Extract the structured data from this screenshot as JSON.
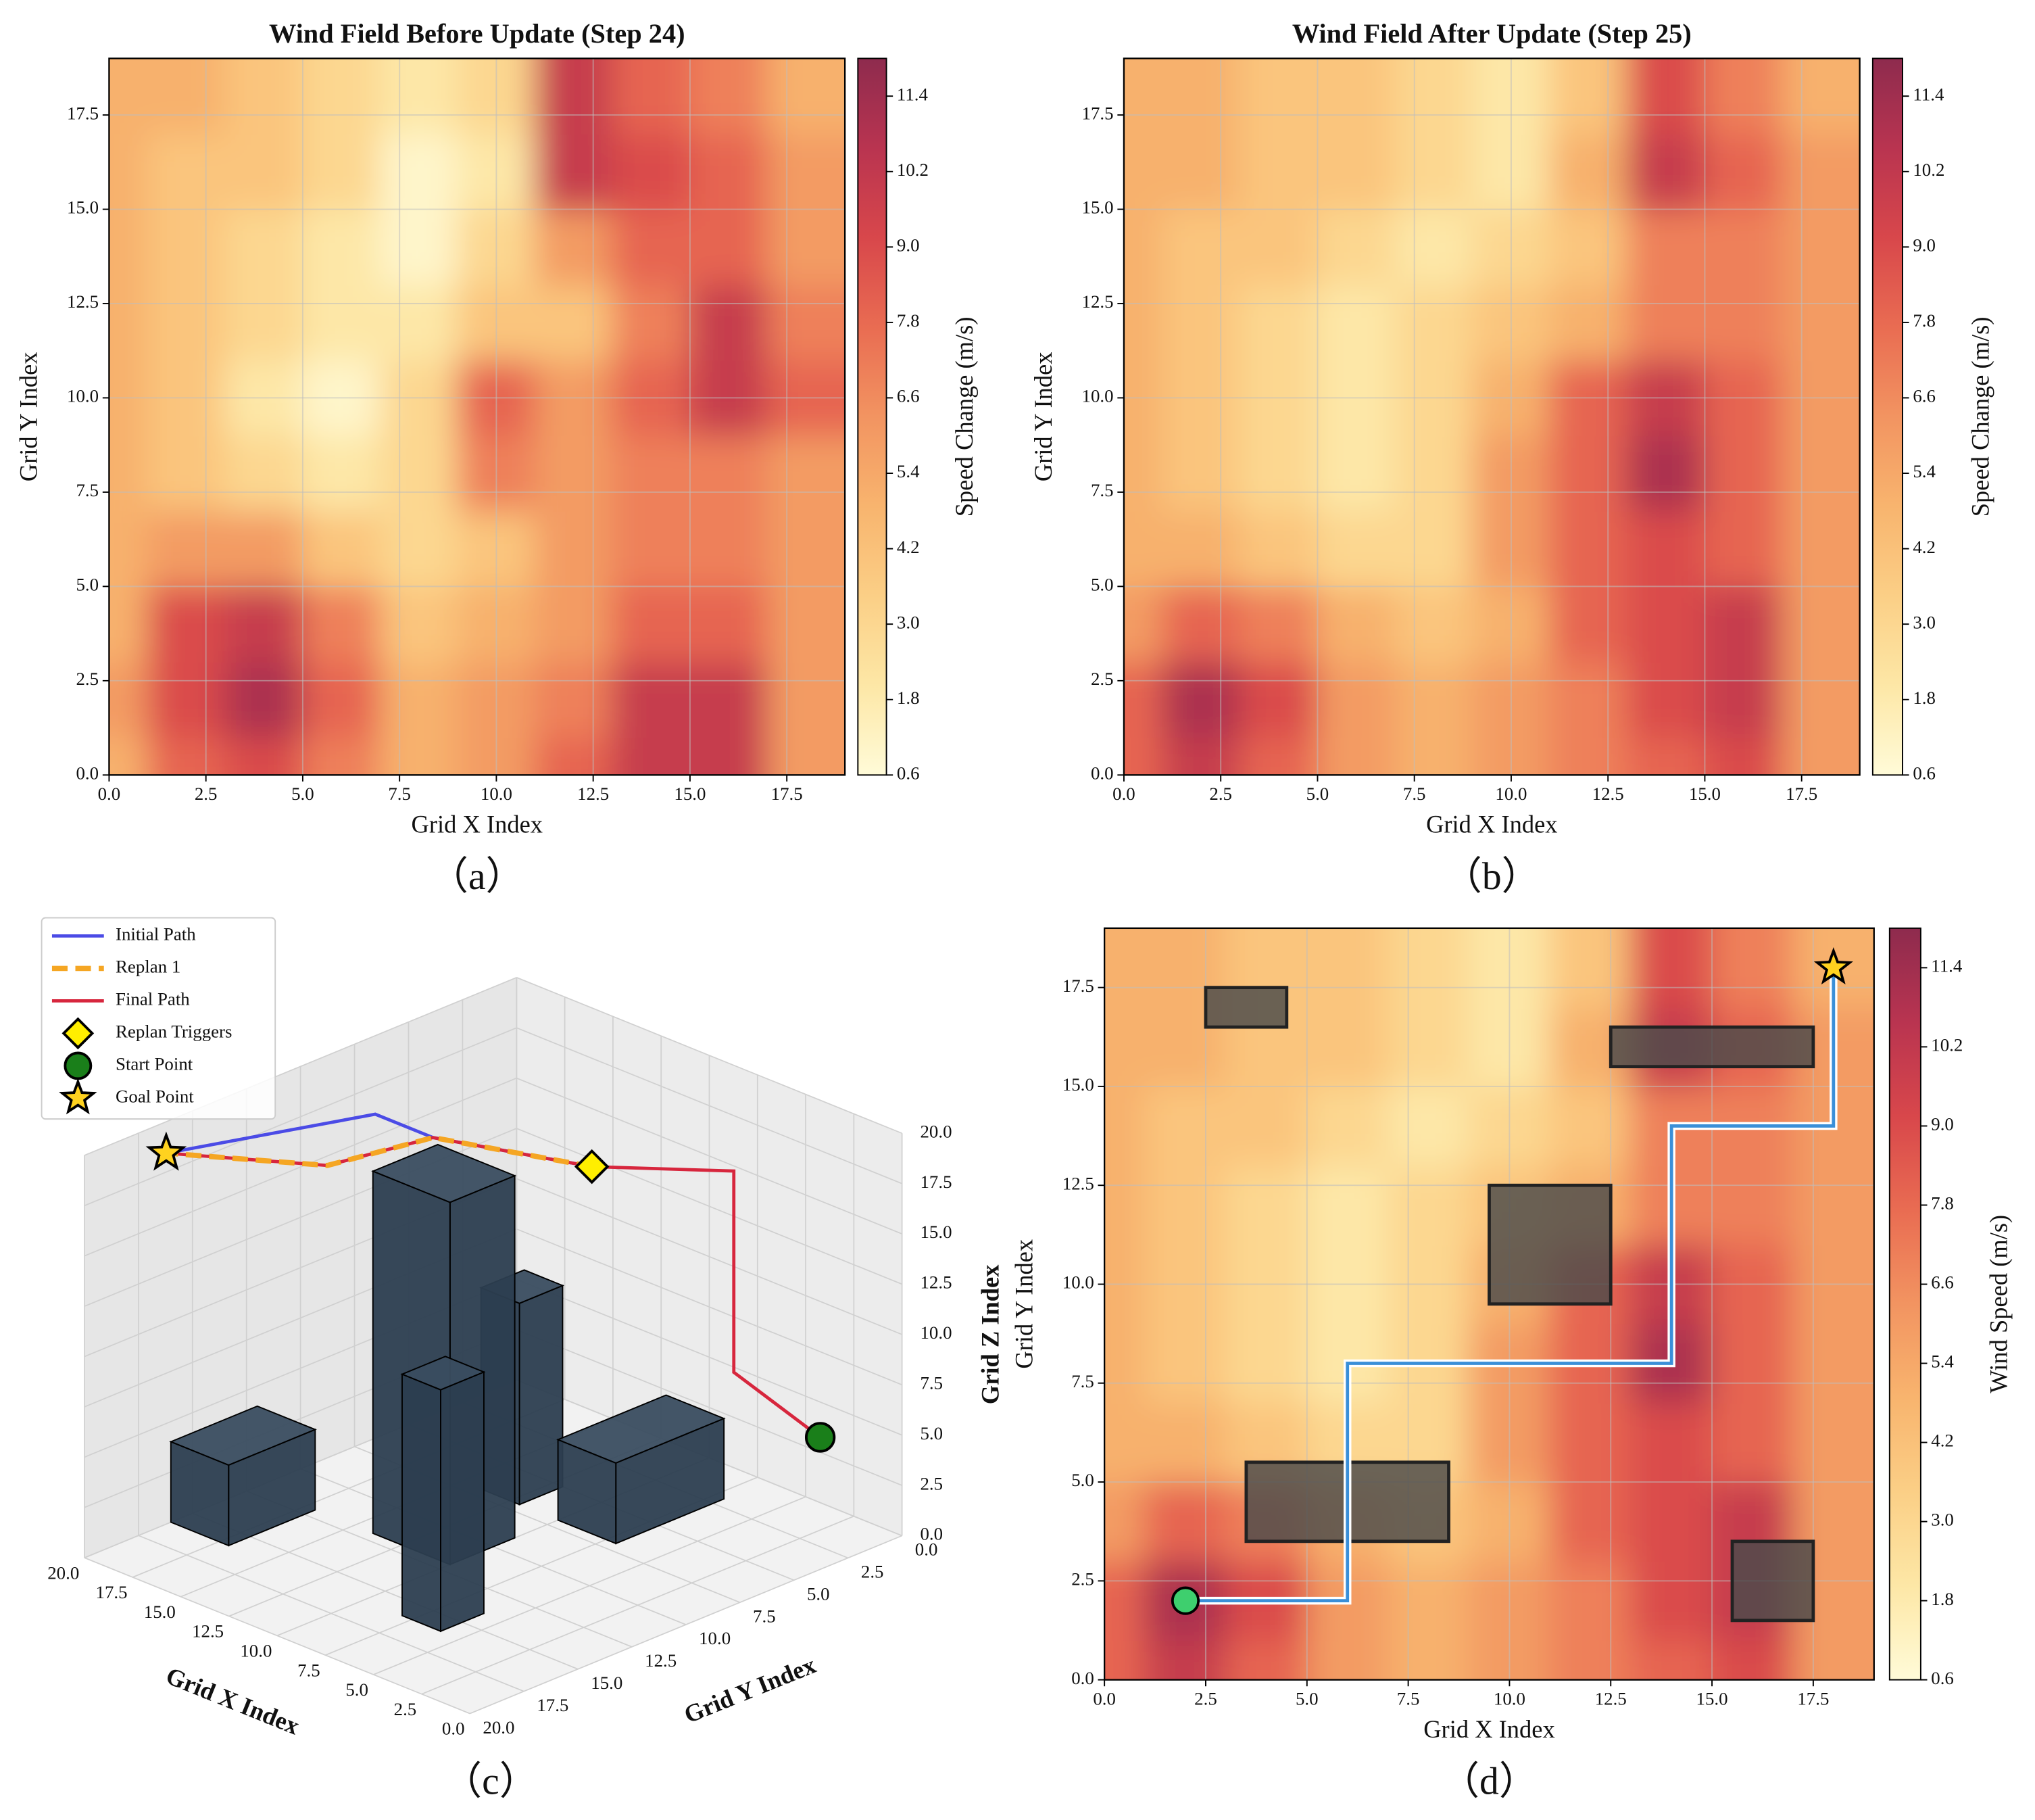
{
  "chart_data": [
    {
      "type": "contour",
      "title": "Wind Field Before Update (Step 24)",
      "panel_label": "（a）",
      "x_label": "Grid X Index",
      "y_label": "Grid Y Index",
      "colorbar_label": "Speed Change (m/s)",
      "grid_x": [
        0,
        2,
        4,
        6,
        8,
        10,
        12,
        14,
        16,
        18
      ],
      "grid_y": [
        0,
        2,
        4,
        6,
        8,
        10,
        12,
        14,
        16,
        18
      ],
      "z": [
        [
          5,
          8,
          9,
          7,
          5,
          6,
          8,
          10,
          10,
          6
        ],
        [
          6,
          9,
          11,
          8,
          5,
          6,
          7,
          10,
          10,
          6
        ],
        [
          5,
          9,
          10,
          7,
          4,
          5,
          6,
          8,
          8,
          6
        ],
        [
          5,
          6,
          6,
          4,
          3,
          4,
          6,
          7,
          7,
          6
        ],
        [
          5,
          4,
          3,
          2,
          3,
          7,
          6,
          7,
          7,
          6
        ],
        [
          5,
          4,
          2,
          1,
          3,
          8,
          6,
          8,
          10,
          8
        ],
        [
          5,
          4,
          3,
          2,
          2,
          4,
          4,
          7,
          10,
          7
        ],
        [
          5,
          4,
          3,
          2,
          1,
          3,
          6,
          8,
          8,
          6
        ],
        [
          5,
          4,
          4,
          3,
          1,
          2,
          10,
          9,
          8,
          6
        ],
        [
          5,
          5,
          4,
          3,
          2,
          3,
          10,
          8,
          7,
          5
        ]
      ],
      "xlim": [
        0,
        19
      ],
      "ylim": [
        0,
        19
      ],
      "xticks": [
        {
          "value": 0,
          "label": "0.0"
        },
        2.5,
        {
          "value": 5,
          "label": "5.0"
        },
        7.5,
        {
          "value": 10,
          "label": "10.0"
        },
        12.5,
        {
          "value": 15,
          "label": "15.0"
        },
        17.5
      ],
      "yticks": [
        {
          "value": 0,
          "label": "0.0"
        },
        2.5,
        {
          "value": 5,
          "label": "5.0"
        },
        7.5,
        {
          "value": 10,
          "label": "10.0"
        },
        12.5,
        {
          "value": 15,
          "label": "15.0"
        },
        17.5
      ],
      "clim": [
        0.6,
        12
      ],
      "cticks": [
        0.6,
        1.8,
        {
          "value": 3,
          "label": "3.0"
        },
        4.2,
        5.4,
        6.6,
        7.8,
        {
          "value": 9,
          "label": "9.0"
        },
        10.2,
        11.4
      ],
      "colormap": [
        "#fffbd8",
        "#fde7a6",
        "#fbcf86",
        "#f8b46e",
        "#f29461",
        "#e96c52",
        "#d8474b",
        "#b93450",
        "#8e2b4e"
      ],
      "grid": true
    },
    {
      "type": "contour",
      "title": "Wind Field After Update (Step 25)",
      "panel_label": "（b）",
      "x_label": "Grid X Index",
      "y_label": "Grid Y Index",
      "colorbar_label": "Speed Change (m/s)",
      "grid_x": [
        0,
        2,
        4,
        6,
        8,
        10,
        12,
        14,
        16,
        18
      ],
      "grid_y": [
        0,
        2,
        4,
        6,
        8,
        10,
        12,
        14,
        16,
        18
      ],
      "z": [
        [
          8,
          10,
          8,
          6,
          5,
          6,
          7,
          8,
          9,
          6
        ],
        [
          8,
          11,
          9,
          6,
          5,
          6,
          7,
          9,
          10,
          6
        ],
        [
          6,
          8,
          7,
          5,
          4,
          5,
          8,
          9,
          10,
          6
        ],
        [
          5,
          5,
          4,
          3,
          3,
          6,
          8,
          9,
          8,
          6
        ],
        [
          5,
          4,
          3,
          2,
          3,
          6,
          8,
          11,
          8,
          6
        ],
        [
          5,
          4,
          3,
          2,
          3,
          5,
          8,
          10,
          8,
          6
        ],
        [
          5,
          4,
          3,
          2,
          3,
          4,
          5,
          7,
          7,
          6
        ],
        [
          5,
          4,
          4,
          3,
          2,
          3,
          4,
          7,
          7,
          6
        ],
        [
          5,
          5,
          4,
          4,
          3,
          2,
          5,
          10,
          8,
          6
        ],
        [
          5,
          5,
          4,
          4,
          3,
          2,
          4,
          9,
          7,
          5
        ]
      ],
      "xlim": [
        0,
        19
      ],
      "ylim": [
        0,
        19
      ],
      "xticks": [
        {
          "value": 0,
          "label": "0.0"
        },
        2.5,
        {
          "value": 5,
          "label": "5.0"
        },
        7.5,
        {
          "value": 10,
          "label": "10.0"
        },
        12.5,
        {
          "value": 15,
          "label": "15.0"
        },
        17.5
      ],
      "yticks": [
        {
          "value": 0,
          "label": "0.0"
        },
        2.5,
        {
          "value": 5,
          "label": "5.0"
        },
        7.5,
        {
          "value": 10,
          "label": "10.0"
        },
        12.5,
        {
          "value": 15,
          "label": "15.0"
        },
        17.5
      ],
      "clim": [
        0.6,
        12
      ],
      "cticks": [
        0.6,
        1.8,
        {
          "value": 3,
          "label": "3.0"
        },
        4.2,
        5.4,
        6.6,
        7.8,
        {
          "value": 9,
          "label": "9.0"
        },
        10.2,
        11.4
      ],
      "colormap": [
        "#fffbd8",
        "#fde7a6",
        "#fbcf86",
        "#f8b46e",
        "#f29461",
        "#e96c52",
        "#d8474b",
        "#b93450",
        "#8e2b4e"
      ],
      "grid": true
    },
    {
      "type": "line3d",
      "panel_label": "（c）",
      "x_label": "Grid X Index",
      "y_label": "Grid Y Index",
      "z_label": "Grid Z Index",
      "xlim": [
        0,
        20
      ],
      "ylim": [
        0,
        20
      ],
      "zlim": [
        0,
        20
      ],
      "xticks": [
        {
          "value": 0,
          "label": "0.0"
        },
        2.5,
        {
          "value": 5,
          "label": "5.0"
        },
        7.5,
        {
          "value": 10,
          "label": "10.0"
        },
        12.5,
        {
          "value": 15,
          "label": "15.0"
        },
        17.5,
        {
          "value": 20,
          "label": "20.0"
        }
      ],
      "yticks": [
        {
          "value": 0,
          "label": "0.0"
        },
        2.5,
        {
          "value": 5,
          "label": "5.0"
        },
        7.5,
        {
          "value": 10,
          "label": "10.0"
        },
        12.5,
        {
          "value": 15,
          "label": "15.0"
        },
        17.5,
        {
          "value": 20,
          "label": "20.0"
        }
      ],
      "zticks": [
        {
          "value": 0,
          "label": "0.0"
        },
        2.5,
        {
          "value": 5,
          "label": "5.0"
        },
        7.5,
        {
          "value": 10,
          "label": "10.0"
        },
        12.5,
        {
          "value": 15,
          "label": "15.0"
        },
        17.5,
        {
          "value": 20,
          "label": "20.0"
        }
      ],
      "series": [
        {
          "name": "Initial Path",
          "color": "#4b4be6",
          "x": [
            18,
            15,
            12,
            6
          ],
          "y": [
            18,
            11,
            11,
            9
          ],
          "z": [
            20,
            20,
            20,
            20
          ]
        },
        {
          "name": "Replan 1",
          "color": "#f5a623",
          "dashed": true,
          "x": [
            6,
            12,
            13,
            18
          ],
          "y": [
            9,
            11,
            15,
            18
          ],
          "z": [
            20,
            20,
            20,
            20
          ]
        },
        {
          "name": "Final Path",
          "color": "#d7263d",
          "x": [
            18,
            13,
            12,
            6,
            2,
            2,
            2
          ],
          "y": [
            18,
            15,
            11,
            9,
            6,
            6,
            2
          ],
          "z": [
            20,
            20,
            20,
            20,
            20,
            10,
            5
          ]
        }
      ],
      "markers": [
        {
          "name": "Replan Triggers",
          "color": "#ffee00",
          "shape": "diamond",
          "x": [
            6
          ],
          "y": [
            9
          ],
          "z": [
            20
          ]
        },
        {
          "name": "Start Point",
          "color": "#1a7f1a",
          "shape": "circle",
          "x": [
            2
          ],
          "y": [
            2
          ],
          "z": [
            5
          ]
        },
        {
          "name": "Goal Point",
          "color": "#ffd21f",
          "shape": "star",
          "x": [
            18
          ],
          "y": [
            18
          ],
          "z": [
            20
          ]
        }
      ],
      "obstacles": [
        {
          "x": [
            10,
            14
          ],
          "y": [
            9,
            12
          ],
          "z": [
            0,
            18
          ]
        },
        {
          "x": [
            6,
            8
          ],
          "y": [
            14,
            16
          ],
          "z": [
            0,
            12
          ]
        },
        {
          "x": [
            12,
            14
          ],
          "y": [
            5,
            7
          ],
          "z": [
            0,
            10
          ]
        },
        {
          "x": [
            17,
            20
          ],
          "y": [
            12,
            16
          ],
          "z": [
            0,
            4
          ]
        },
        {
          "x": [
            7,
            10
          ],
          "y": [
            2,
            7
          ],
          "z": [
            0,
            4
          ]
        }
      ],
      "legend": "upper left"
    },
    {
      "type": "contour",
      "panel_label": "（d）",
      "x_label": "Grid X Index",
      "y_label": "Grid Y Index",
      "colorbar_label": "Wind Speed (m/s)",
      "grid_x": [
        0,
        2,
        4,
        6,
        8,
        10,
        12,
        14,
        16,
        18
      ],
      "grid_y": [
        0,
        2,
        4,
        6,
        8,
        10,
        12,
        14,
        16,
        18
      ],
      "z": [
        [
          8,
          10,
          8,
          6,
          5,
          6,
          7,
          8,
          9,
          6
        ],
        [
          8,
          11,
          9,
          6,
          5,
          6,
          7,
          9,
          10,
          6
        ],
        [
          6,
          8,
          7,
          5,
          4,
          5,
          8,
          9,
          10,
          6
        ],
        [
          5,
          5,
          4,
          3,
          3,
          6,
          8,
          9,
          8,
          6
        ],
        [
          5,
          4,
          3,
          2,
          3,
          6,
          8,
          11,
          8,
          6
        ],
        [
          5,
          4,
          3,
          2,
          3,
          5,
          8,
          10,
          8,
          6
        ],
        [
          5,
          4,
          3,
          2,
          3,
          4,
          5,
          7,
          7,
          6
        ],
        [
          5,
          4,
          4,
          3,
          2,
          3,
          4,
          7,
          7,
          6
        ],
        [
          5,
          5,
          4,
          4,
          3,
          2,
          5,
          10,
          8,
          6
        ],
        [
          5,
          5,
          4,
          4,
          3,
          2,
          4,
          9,
          7,
          5
        ]
      ],
      "xlim": [
        0,
        19
      ],
      "ylim": [
        0,
        19
      ],
      "xticks": [
        {
          "value": 0,
          "label": "0.0"
        },
        2.5,
        {
          "value": 5,
          "label": "5.0"
        },
        7.5,
        {
          "value": 10,
          "label": "10.0"
        },
        12.5,
        {
          "value": 15,
          "label": "15.0"
        },
        17.5
      ],
      "yticks": [
        {
          "value": 0,
          "label": "0.0"
        },
        2.5,
        {
          "value": 5,
          "label": "5.0"
        },
        7.5,
        {
          "value": 10,
          "label": "10.0"
        },
        12.5,
        {
          "value": 15,
          "label": "15.0"
        },
        17.5
      ],
      "clim": [
        0.6,
        12
      ],
      "cticks": [
        0.6,
        1.8,
        {
          "value": 3,
          "label": "3.0"
        },
        4.2,
        5.4,
        6.6,
        7.8,
        {
          "value": 9,
          "label": "9.0"
        },
        10.2,
        11.4
      ],
      "colormap": [
        "#fffbd8",
        "#fde7a6",
        "#fbcf86",
        "#f8b46e",
        "#f29461",
        "#e96c52",
        "#d8474b",
        "#b93450",
        "#8e2b4e"
      ],
      "grid": true,
      "obstacles": [
        {
          "x": 2.5,
          "y": 16.5,
          "width": 2,
          "height": 1
        },
        {
          "x": 12.5,
          "y": 15.5,
          "width": 5,
          "height": 1
        },
        {
          "x": 9.5,
          "y": 9.5,
          "width": 3,
          "height": 3
        },
        {
          "x": 3.5,
          "y": 3.5,
          "width": 5,
          "height": 2
        },
        {
          "x": 15.5,
          "y": 1.5,
          "width": 2,
          "height": 2
        }
      ],
      "obstacle_color": "#4a4a4a",
      "path_color": "#3a8fd8",
      "path": {
        "x": [
          2,
          6,
          6,
          14,
          14,
          18,
          18
        ],
        "y": [
          2,
          2,
          8,
          8,
          14,
          14,
          18
        ]
      },
      "start": {
        "x": 2,
        "y": 2,
        "color": "#3ecf6e"
      },
      "goal": {
        "x": 18,
        "y": 18,
        "color": "#ffd21f"
      }
    }
  ]
}
